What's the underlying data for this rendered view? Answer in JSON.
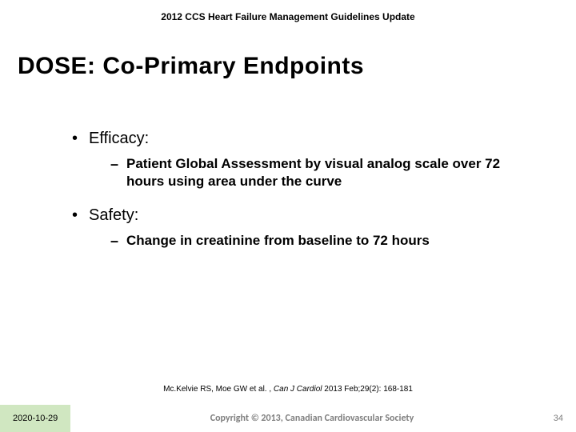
{
  "header": "2012 CCS Heart Failure Management Guidelines Update",
  "title": "DOSE: Co-Primary Endpoints",
  "bullets": [
    {
      "label": "Efficacy:",
      "sub": "Patient Global Assessment by visual analog scale over 72 hours using area under the curve"
    },
    {
      "label": "Safety:",
      "sub": "Change in creatinine from baseline to 72 hours"
    }
  ],
  "citation_pre": "Mc.Kelvie RS, Moe GW et al. , ",
  "citation_ital": "Can J Cardiol ",
  "citation_post": "2013 Feb;29(2): 168-181",
  "footer": {
    "date": "2020-10-29",
    "copyright": "Copyright © 2013, Canadian Cardiovascular Society",
    "page": "34"
  },
  "colors": {
    "date_bg": "#d0e7c1",
    "footer_text": "#7f7f7f"
  }
}
